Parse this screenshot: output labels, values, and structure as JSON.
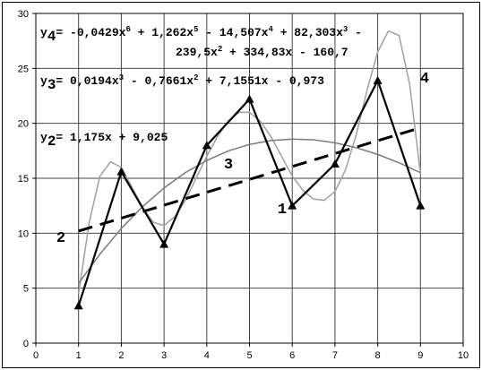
{
  "chart_data": {
    "type": "line",
    "xlim": [
      0,
      10
    ],
    "xticks": [
      0,
      1,
      2,
      3,
      4,
      5,
      6,
      7,
      8,
      9,
      10
    ],
    "ylim": [
      0,
      30
    ],
    "yticks": [
      0,
      5,
      10,
      15,
      20,
      25,
      30
    ],
    "grid": true,
    "series": [
      {
        "name": "1",
        "color": "#000000",
        "x": [
          1,
          2,
          3,
          4,
          5,
          6,
          7,
          8,
          9
        ],
        "values": [
          3.4,
          15.6,
          9.0,
          18.0,
          22.2,
          12.5,
          16.3,
          23.9,
          12.5
        ]
      },
      {
        "name": "2",
        "color": "#000000",
        "x": [
          1,
          9
        ],
        "values": [
          10.2,
          19.6
        ]
      },
      {
        "name": "3",
        "color": "#7a7a7a",
        "x": [
          1,
          1.5,
          2,
          2.5,
          3,
          3.5,
          4,
          4.5,
          5,
          5.5,
          6,
          6.5,
          7,
          7.5,
          8,
          8.5,
          9
        ],
        "values": [
          5.44,
          8.1,
          10.43,
          12.43,
          14.12,
          15.52,
          16.63,
          17.48,
          18.08,
          18.43,
          18.57,
          18.5,
          18.23,
          17.78,
          17.17,
          16.41,
          15.51
        ]
      },
      {
        "name": "4",
        "color": "#a0a0a0",
        "x": [
          1,
          1.25,
          1.5,
          1.75,
          2,
          2.25,
          2.5,
          2.75,
          3,
          3.25,
          3.5,
          3.75,
          4,
          4.25,
          4.5,
          4.75,
          5,
          5.25,
          5.5,
          5.75,
          6,
          6.25,
          6.5,
          6.75,
          7,
          7.25,
          7.5,
          7.75,
          8,
          8.25,
          8.5,
          8.75,
          9
        ],
        "values": [
          4.5,
          11,
          15.2,
          16.5,
          16,
          14.2,
          12.3,
          11,
          10.7,
          11.5,
          13,
          15,
          17,
          18.8,
          20.2,
          21,
          21,
          20.2,
          18.8,
          17,
          15.2,
          13.9,
          13.1,
          13,
          13.8,
          15.8,
          19,
          23,
          26.5,
          28.4,
          28,
          23.5,
          15.4
        ]
      }
    ],
    "equations": [
      [
        "y",
        "4",
        "= -0,0429x",
        "6",
        " + 1,262x",
        "5",
        " - 14,507x",
        "4",
        " + 82,303x",
        "3",
        " -"
      ],
      [
        "239,5x",
        "2",
        " + 334,83x - 160,7"
      ],
      [
        "y",
        "3",
        "= 0,0194x",
        "3",
        " - 0,7661x",
        "2",
        " + 7,1551x - 0,973"
      ],
      [
        "y",
        "2",
        "= 1,175x + 9,025"
      ]
    ]
  }
}
